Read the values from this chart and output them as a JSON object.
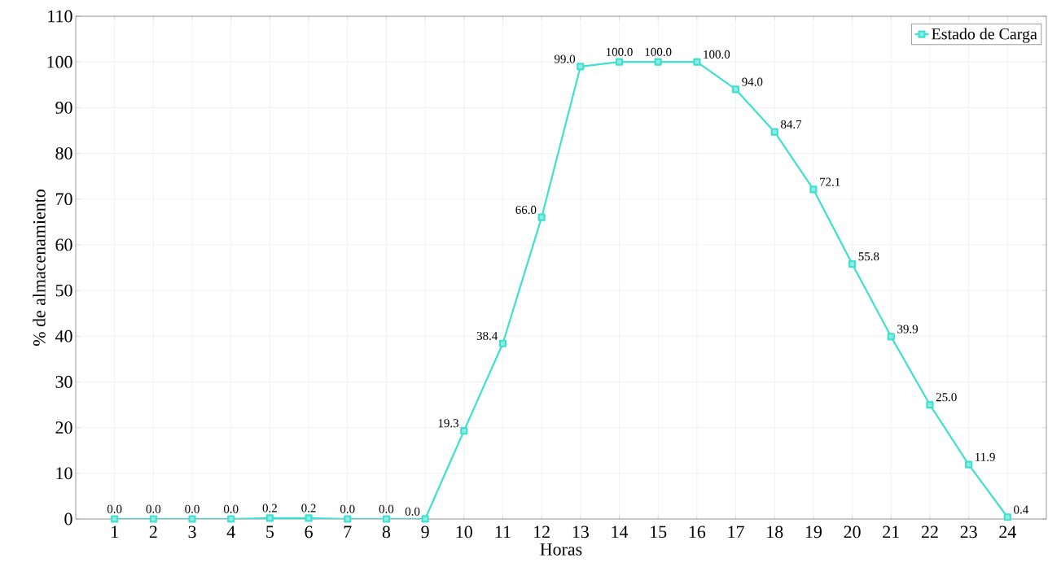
{
  "chart_data": {
    "type": "line",
    "xlabel": "Horas",
    "ylabel": "% de almacenamiento",
    "x": [
      1,
      2,
      3,
      4,
      5,
      6,
      7,
      8,
      9,
      10,
      11,
      12,
      13,
      14,
      15,
      16,
      17,
      18,
      19,
      20,
      21,
      22,
      23,
      24
    ],
    "series": [
      {
        "name": "Estado de Carga",
        "color": "#40e0d0",
        "values": [
          0.0,
          0.0,
          0.0,
          0.0,
          0.2,
          0.2,
          0.0,
          0.0,
          0.0,
          19.3,
          38.4,
          66.0,
          99.0,
          100.0,
          100.0,
          100.0,
          94.0,
          84.7,
          72.1,
          55.8,
          39.9,
          25.0,
          11.9,
          0.4
        ],
        "value_labels": [
          "0.0",
          "0.0",
          "0.0",
          "0.0",
          "0.2",
          "0.2",
          "0.0",
          "0.0",
          "0.0",
          "19.3",
          "38.4",
          "66.0",
          "99.0",
          "100.0",
          "100.0",
          "100.0",
          "94.0",
          "84.7",
          "72.1",
          "55.8",
          "39.9",
          "25.0",
          "11.9",
          "0.4"
        ]
      }
    ],
    "xlim": [
      0,
      25
    ],
    "xticks": [
      1,
      2,
      3,
      4,
      5,
      6,
      7,
      8,
      9,
      10,
      11,
      12,
      13,
      14,
      15,
      16,
      17,
      18,
      19,
      20,
      21,
      22,
      23,
      24
    ],
    "ylim": [
      0,
      110
    ],
    "yticks": [
      0,
      10,
      20,
      30,
      40,
      50,
      60,
      70,
      80,
      90,
      100,
      110
    ],
    "grid": true,
    "legend": "top right",
    "marker": "square",
    "line_style": "solid"
  }
}
